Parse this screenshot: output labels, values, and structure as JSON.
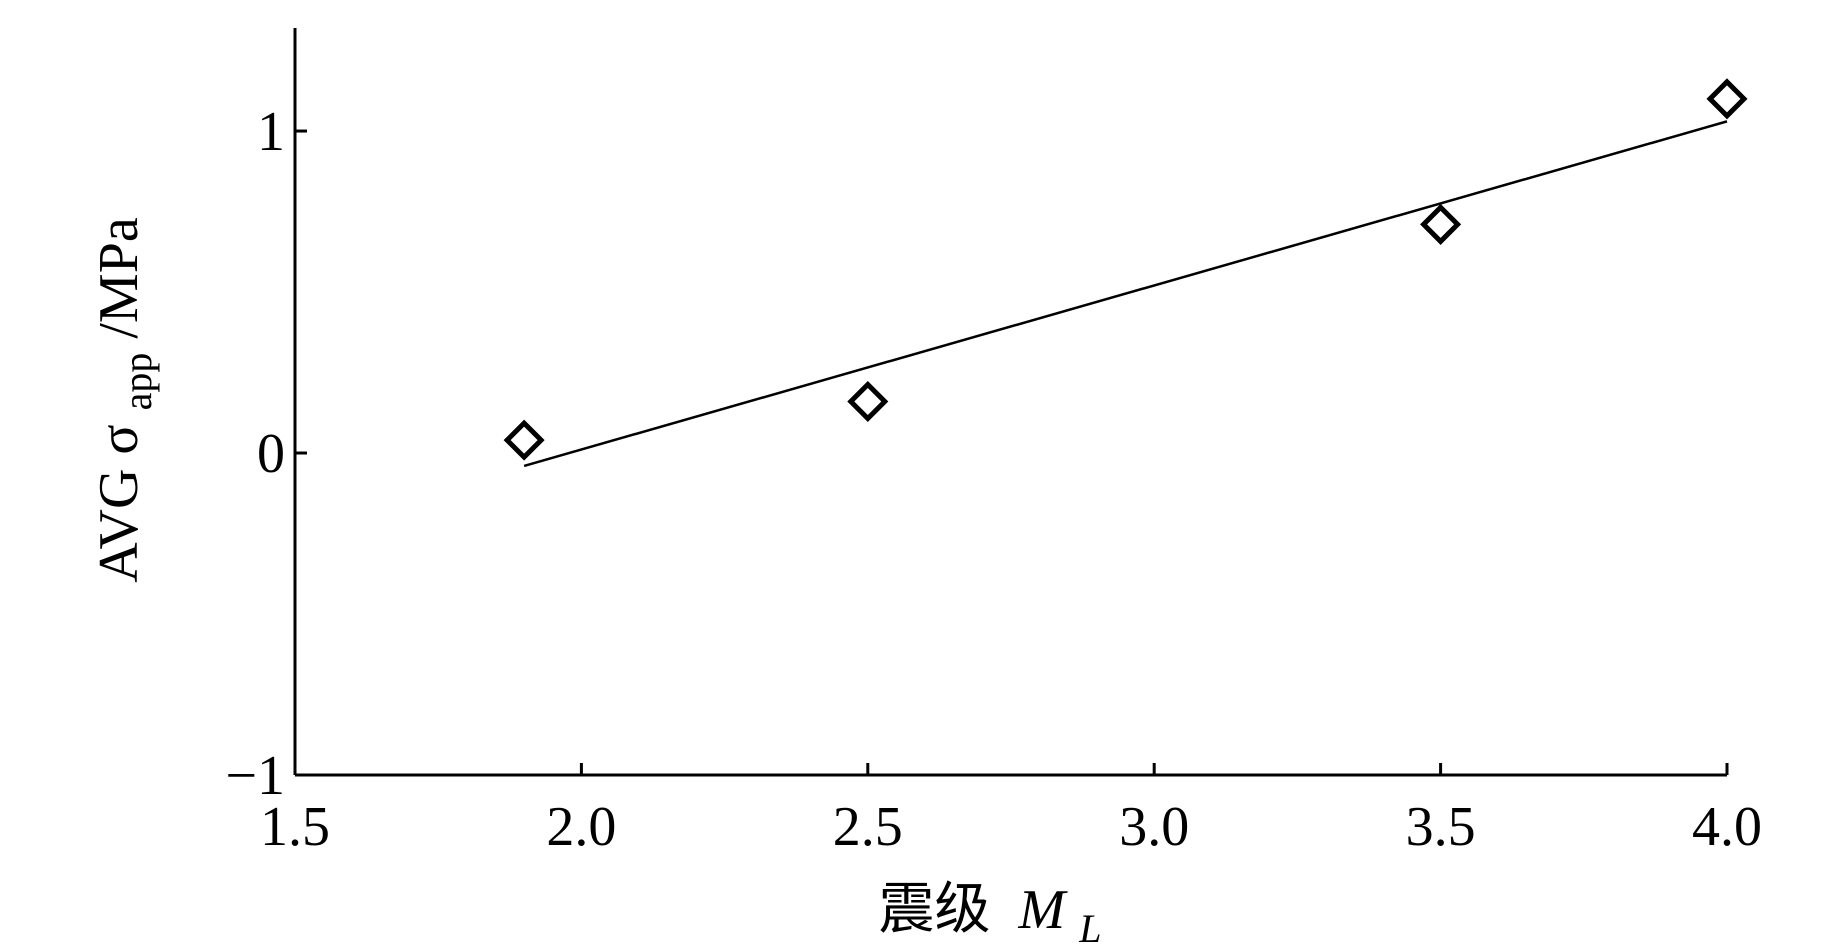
{
  "chart_data": {
    "type": "scatter",
    "title": "",
    "xlabel": {
      "prefix": "震级",
      "symbol": "M",
      "subscript": "L"
    },
    "ylabel": {
      "prefix": "AVG σ",
      "subscript": "app",
      "suffix": "/MPa"
    },
    "xlim": [
      1.5,
      4.0
    ],
    "ylim": [
      -1,
      1.32
    ],
    "x_ticks": [
      1.5,
      2.0,
      2.5,
      3.0,
      3.5,
      4.0
    ],
    "x_tick_labels": [
      "1.5",
      "2.0",
      "2.5",
      "3.0",
      "3.5",
      "4.0"
    ],
    "y_ticks": [
      -1,
      0,
      1
    ],
    "y_tick_labels": [
      "−1",
      "0",
      "1"
    ],
    "grid": false,
    "legend": "none",
    "series": [
      {
        "marker": "open-diamond",
        "color": "#000000",
        "points": [
          {
            "x": 1.9,
            "y": 0.04
          },
          {
            "x": 2.5,
            "y": 0.16
          },
          {
            "x": 3.5,
            "y": 0.71
          },
          {
            "x": 4.0,
            "y": 1.1
          }
        ]
      }
    ],
    "fit_line": {
      "color": "#000000",
      "from": {
        "x": 1.9,
        "y": -0.04
      },
      "to": {
        "x": 4.0,
        "y": 1.03
      }
    }
  }
}
